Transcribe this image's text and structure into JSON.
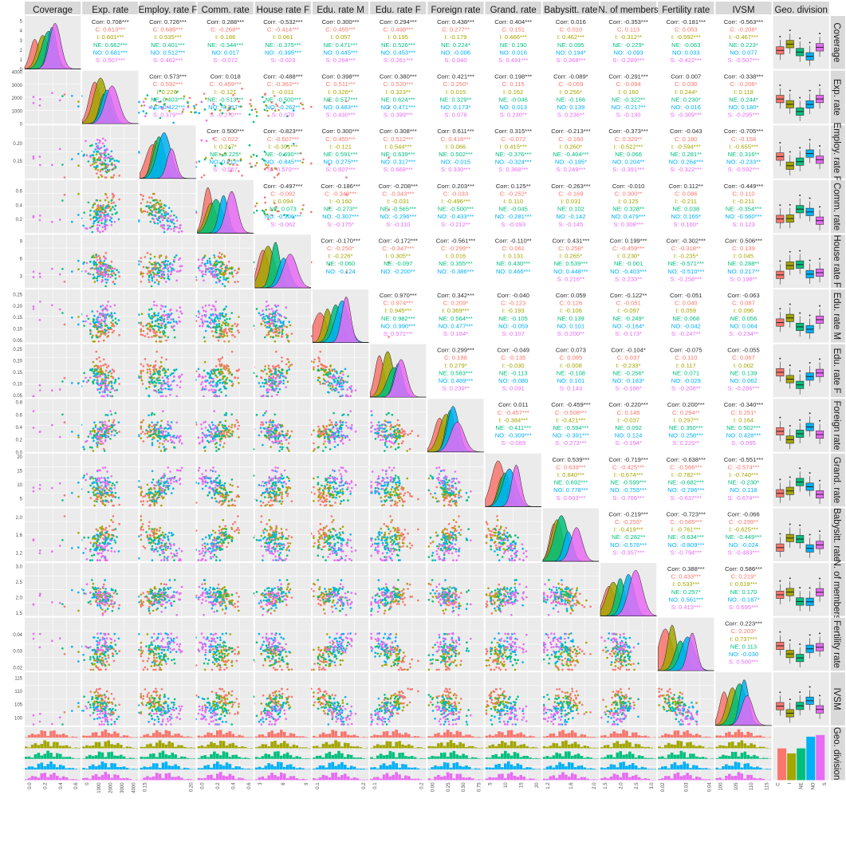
{
  "figure": {
    "vars": [
      {
        "key": "coverage",
        "label": "Coverage",
        "ticks": [
          0,
          1,
          2,
          3,
          4,
          5
        ],
        "ylim": [
          0,
          5.5
        ],
        "xticks": [
          "0.0",
          "0.2",
          "0.4",
          "0.6"
        ],
        "xlim": [
          0,
          0.7
        ]
      },
      {
        "key": "exp",
        "label": "Exp. rate",
        "ticks": [
          0,
          1000,
          2000,
          3000,
          4000
        ],
        "ylim": [
          0,
          4100
        ],
        "xticks": [
          "0",
          "1000",
          "2000",
          "3000",
          "4000"
        ],
        "xlim": [
          0,
          4100
        ]
      },
      {
        "key": "emp",
        "label": "Employ. rate F",
        "ticks": [
          "0.15",
          "0.20"
        ],
        "tickvals": [
          0.15,
          0.2
        ],
        "ylim": [
          0.1,
          0.25
        ],
        "xticks": [
          "0.15",
          "0.20"
        ],
        "xlim": [
          0.1,
          0.25
        ]
      },
      {
        "key": "comm",
        "label": "Comm. rate",
        "ticks": [
          "0.2",
          "0.4",
          "0.6"
        ],
        "tickvals": [
          0.2,
          0.4,
          0.6
        ],
        "ylim": [
          0,
          0.75
        ],
        "xticks": [
          "0.0",
          "0.2",
          "0.4",
          "0.6"
        ],
        "xlim": [
          0,
          0.75
        ]
      },
      {
        "key": "house",
        "label": "House rate F",
        "ticks": [
          3,
          6,
          9
        ],
        "ylim": [
          1,
          10
        ],
        "xticks": [
          "3",
          "6",
          "9"
        ],
        "xlim": [
          1,
          10
        ]
      },
      {
        "key": "edum",
        "label": "Edu. rate M",
        "ticks": [
          "0.05",
          "0.10",
          "0.15",
          "0.20",
          "0.25"
        ],
        "tickvals": [
          0.05,
          0.1,
          0.15,
          0.2,
          0.25
        ],
        "ylim": [
          0.04,
          0.27
        ],
        "xticks": [
          "0.1",
          "0.2"
        ],
        "xlim": [
          0.04,
          0.27
        ]
      },
      {
        "key": "eduf",
        "label": "Edu. rate F",
        "ticks": [
          "0.05",
          "0.10",
          "0.15",
          "0.20",
          "0.25"
        ],
        "tickvals": [
          0.05,
          0.1,
          0.15,
          0.2,
          0.25
        ],
        "ylim": [
          0.04,
          0.27
        ],
        "xticks": [
          "0.1",
          "0.2"
        ],
        "xlim": [
          0.04,
          0.27
        ]
      },
      {
        "key": "foreign",
        "label": "Foreign rate",
        "ticks": [
          "0.0",
          "0.2",
          "0.4",
          "0.6",
          "0.8"
        ],
        "tickvals": [
          0,
          0.2,
          0.4,
          0.6,
          0.8
        ],
        "ylim": [
          0,
          0.85
        ],
        "xticks": [
          "0.00",
          "0.25",
          "0.50",
          "0.75"
        ],
        "xlim": [
          0,
          0.85
        ]
      },
      {
        "key": "grand",
        "label": "Grand. rate",
        "ticks": [
          5,
          10,
          15,
          20
        ],
        "ylim": [
          2,
          21
        ],
        "xticks": [
          "5",
          "10",
          "15",
          "20"
        ],
        "xlim": [
          2,
          21
        ]
      },
      {
        "key": "baby",
        "label": "Babysitt. rate",
        "ticks": [
          "1.2",
          "1.6",
          "2.0"
        ],
        "tickvals": [
          1.2,
          1.6,
          2.0
        ],
        "ylim": [
          1.0,
          2.2
        ],
        "xticks": [
          "1.2",
          "1.6",
          "2.0"
        ],
        "xlim": [
          1.0,
          2.2
        ]
      },
      {
        "key": "nmem",
        "label": "N. of members",
        "ticks": [
          "1.5",
          "2.0",
          "2.5",
          "3.0"
        ],
        "tickvals": [
          1.5,
          2.0,
          2.5,
          3.0
        ],
        "ylim": [
          1.4,
          3.1
        ],
        "xticks": [
          "1.5",
          "2.0",
          "2.5",
          "3.0"
        ],
        "xlim": [
          1.4,
          3.1
        ]
      },
      {
        "key": "fert",
        "label": "Fertility rate",
        "ticks": [
          "0.02",
          "0.03",
          "0.04"
        ],
        "tickvals": [
          0.02,
          0.03,
          0.04
        ],
        "ylim": [
          0.018,
          0.05
        ],
        "xticks": [
          "0.02",
          "0.03",
          "0.04"
        ],
        "xlim": [
          0.018,
          0.05
        ]
      },
      {
        "key": "ivsm",
        "label": "IVSM",
        "ticks": [
          100,
          105,
          110,
          115
        ],
        "ylim": [
          97,
          117
        ],
        "xticks": [
          "100",
          "105",
          "110",
          "115"
        ],
        "xlim": [
          97,
          117
        ]
      },
      {
        "key": "geo",
        "label": "Geo. division",
        "xticks": [
          "C",
          "I",
          "NE",
          "NO",
          "S"
        ]
      }
    ],
    "groups": [
      "C",
      "I",
      "NE",
      "NO",
      "S"
    ],
    "colors": {
      "C": "#F8766D",
      "I": "#A3A500",
      "NE": "#00BF7D",
      "NO": "#00B0F6",
      "S": "#E76BF3"
    },
    "strip_bg": "#D9D9D9",
    "panel_bg": "#EBEBEB",
    "grid": "#FFFFFF",
    "corr_lines": [
      [
        "Corr: 0.708***",
        "Corr: 0.726***",
        "Corr: 0.288***",
        "Corr: -0.532***",
        "Corr: 0.300***",
        "Corr: 0.294***",
        "Corr: 0.438***",
        "Corr: 0.404***",
        "Corr: 0.016",
        "Corr: -0.353***",
        "Corr: -0.181***",
        "Corr: -0.563***"
      ],
      [
        "Corr: 0.573***",
        "Corr: 0.018",
        "Corr: -0.488***",
        "Corr: 0.398***",
        "Corr: 0.380***",
        "Corr: 0.421***",
        "Corr: 0.198***",
        "Corr: -0.089*",
        "Corr: -0.291***",
        "Corr: 0.007",
        "Corr: -0.338***"
      ],
      [
        "Corr: 0.500***",
        "Corr: -0.823***",
        "Corr: 0.300***",
        "Corr: 0.308***",
        "Corr: 0.611***",
        "Corr: 0.315***",
        "Corr: -0.213***",
        "Corr: -0.373***",
        "Corr: -0.043",
        "Corr: -0.705***"
      ],
      [
        "Corr: -0.497***",
        "Corr: -0.186***",
        "Corr: -0.208***",
        "Corr: 0.203***",
        "Corr: 0.125**",
        "Corr: -0.263***",
        "Corr: -0.010",
        "Corr: 0.112**",
        "Corr: -0.449***"
      ],
      [
        "Corr: -0.170***",
        "Corr: -0.172***",
        "Corr: -0.561***",
        "Corr: -0.110**",
        "Corr: 0.431***",
        "Corr: 0.199***",
        "Corr: -0.302***",
        "Corr: 0.506***"
      ],
      [
        "Corr: 0.970***",
        "Corr: 0.342***",
        "Corr: -0.040",
        "Corr: 0.059",
        "Corr: -0.122**",
        "Corr: -0.051",
        "Corr: -0.063"
      ],
      [
        "Corr: 0.299***",
        "Corr: -0.049",
        "Corr: 0.073",
        "Corr: -0.104*",
        "Corr: -0.075",
        "Corr: -0.055"
      ],
      [
        "Corr: 0.011",
        "Corr: -0.459***",
        "Corr: -0.220***",
        "Corr: 0.200***",
        "Corr: -0.340***"
      ],
      [
        "Corr: 0.539***",
        "Corr: -0.719***",
        "Corr: -0.638***",
        "Corr: -0.551***"
      ],
      [
        "Corr: -0.219***",
        "Corr: -0.723***",
        "Corr: -0.066"
      ],
      [
        "Corr: 0.388***",
        "Corr: 0.586***"
      ],
      [
        "Corr: 0.223***"
      ]
    ],
    "group_corr": {
      "0-1": [
        "C: 0.613***",
        "I: 0.601***",
        "NE: 0.662***",
        "NO: 0.681***",
        "S: 0.507***"
      ],
      "0-2": [
        "C: 0.689***",
        "I: 0.535***",
        "NE: 0.401***",
        "NO: 0.512***",
        "S: 0.462***"
      ],
      "0-3": [
        "C: -0.268**",
        "I: 0.186",
        "NE: -0.344***",
        "NO: 0.017",
        "S: -0.072"
      ],
      "0-4": [
        "C: -0.414***",
        "I: 0.061",
        "NE: -0.375***",
        "NO: -0.395***",
        "S: -0.023"
      ],
      "0-5": [
        "C: 0.455***",
        "I: 0.057",
        "NE: 0.471***",
        "NO: 0.445***",
        "S: 0.264***"
      ],
      "0-6": [
        "C: 0.498***",
        "I: 0.195",
        "NE: 0.526***",
        "NO: 0.453***",
        "S: 0.261***"
      ],
      "0-7": [
        "C: 0.277**",
        "I: -0.179",
        "NE: 0.224*",
        "NO: -0.006",
        "S: 0.040"
      ],
      "0-8": [
        "C: 0.151",
        "I: 0.466***",
        "NE: 0.190",
        "NO: 0.016",
        "S: 0.491***"
      ],
      "0-9": [
        "C: 0.010",
        "I: 0.462***",
        "NE: 0.095",
        "NO: 0.194*",
        "S: 0.368***"
      ],
      "0-10": [
        "C: 0.113",
        "I: -0.312**",
        "NE: -0.229*",
        "NO: -0.093",
        "S: -0.289***"
      ],
      "0-11": [
        "C: 0.053",
        "I: -0.592***",
        "NE: -0.063",
        "NO: 0.033",
        "S: -0.422***"
      ],
      "0-12": [
        "C: -0.208*",
        "I: -0.467***",
        "NE: 0.223*",
        "NO: 0.077",
        "S: -0.507***"
      ],
      "1-2": [
        "C: 0.592***",
        "I: 0.226*",
        "NE: 0.403***",
        "NO: 0.422***",
        "S: 0.379***"
      ],
      "1-3": [
        "C: -0.459***",
        "I: -0.121",
        "NE: -0.513***",
        "NO: -0.317**",
        "S: -0.270***"
      ],
      "1-4": [
        "C: -0.363***",
        "I: -0.011",
        "NE: -0.500***",
        "NO: -0.262**",
        "S: 0.078"
      ],
      "1-5": [
        "C: 0.511***",
        "I: 0.326**",
        "NE: 0.577***",
        "NO: 0.483***",
        "S: 0.430***"
      ],
      "1-6": [
        "C: 0.520***",
        "I: 0.323**",
        "NE: 0.624***",
        "NO: 0.471***",
        "S: 0.399***"
      ],
      "1-7": [
        "C: 0.250*",
        "I: 0.015",
        "NE: 0.329**",
        "NO: 0.173*",
        "S: 0.078"
      ],
      "1-8": [
        "C: 0.115",
        "I: 0.162",
        "NE: -0.046",
        "NO: 0.013",
        "S: 0.230**"
      ],
      "1-9": [
        "C: -0.059",
        "I: 0.256*",
        "NE: -0.166",
        "NO: 0.139",
        "S: 0.236**"
      ],
      "1-10": [
        "C: -0.094",
        "I: 0.160",
        "NE: -0.322**",
        "NO: -0.217**",
        "S: -0.130"
      ],
      "1-11": [
        "C: 0.030",
        "I: 0.244*",
        "NE: 0.230*",
        "NO: -0.016",
        "S: -0.309***"
      ],
      "1-12": [
        "C: -0.206*",
        "I: 0.118",
        "NE: 0.244*",
        "NO: 0.180*",
        "S: -0.295***"
      ],
      "2-3": [
        "C: -0.022",
        "I: 0.247*",
        "NE: -0.225*",
        "NO: 0.212**",
        "S: -0.067"
      ],
      "2-4": [
        "C: -0.607***",
        "I: -0.391***",
        "NE: -0.690***",
        "NO: -0.845***",
        "S: -0.570***"
      ],
      "2-5": [
        "C: 0.455***",
        "I: -0.121",
        "NE: 0.591***",
        "NO: 0.275***",
        "S: 0.607***"
      ],
      "2-6": [
        "C: 0.512***",
        "I: 0.544***",
        "NE: 0.639***",
        "NO: 0.317***",
        "S: 0.668***"
      ],
      "2-7": [
        "C: 0.416***",
        "I: 0.066",
        "NE: 0.502***",
        "NO: -0.015",
        "S: 0.330***"
      ],
      "2-8": [
        "C: -0.072",
        "I: 0.415***",
        "NE: -0.376***",
        "NO: -0.324***",
        "S: 0.368***"
      ],
      "2-9": [
        "C: -0.160",
        "I: 0.260*",
        "NE: -0.404***",
        "NO: -0.195*",
        "S: 0.249***"
      ],
      "2-10": [
        "C: 0.320**",
        "I: -0.522***",
        "NE: 0.066",
        "NO: 0.204**",
        "S: -0.391***"
      ],
      "2-11": [
        "C: 0.180",
        "I: -0.594***",
        "NE: 0.281**",
        "NO: 0.264***",
        "S: -0.322***"
      ],
      "2-12": [
        "C: -0.158",
        "I: -0.655***",
        "NE: 0.316**",
        "NO: -0.233**",
        "S: -0.592***"
      ],
      "3-4": [
        "C: -0.092",
        "I: 0.094",
        "NE: 0.073",
        "NO: -0.306***",
        "S: -0.062"
      ],
      "3-5": [
        "C: -0.349***",
        "I: -0.160",
        "NE: -0.273**",
        "NO: -0.307***",
        "S: -0.175*"
      ],
      "3-6": [
        "C: -0.343***",
        "I: -0.031",
        "NE: -0.565***",
        "NO: -0.296***",
        "S: -0.110"
      ],
      "3-7": [
        "C: -0.033",
        "I: -0.496***",
        "NE: -0.500***",
        "NO: -0.433***",
        "S: -0.212**"
      ],
      "3-8": [
        "C: -0.252*",
        "I: 0.110",
        "NE: -0.045",
        "NO: -0.281***",
        "S: -0.093"
      ],
      "3-9": [
        "C: -0.169",
        "I: 0.031",
        "NE: 0.102",
        "NO: -0.142",
        "S: -0.145"
      ],
      "3-10": [
        "C: 0.300**",
        "I: 0.125",
        "NE: 0.328**",
        "NO: 0.479***",
        "S: 0.308***"
      ],
      "3-11": [
        "C: 0.086",
        "I: -0.211",
        "NE: 0.038",
        "NO: 0.165*",
        "S: 0.160*"
      ],
      "3-12": [
        "C: 0.110",
        "I: -0.211",
        "NE: -0.354***",
        "NO: -0.560***",
        "S: 0.123"
      ],
      "4-5": [
        "C: -0.250*",
        "I: -0.226*",
        "NE: -0.060",
        "NO: -0.124",
        ""
      ],
      "4-6": [
        "C: -0.347***",
        "I: 0.305**",
        "NE: -0.097",
        "NO: -0.200**",
        ""
      ],
      "4-7": [
        "C: -0.299**",
        "I: 0.016",
        "NE: 0.355***",
        "NO: -0.386***",
        ""
      ],
      "4-8": [
        "C: 0.061",
        "I: 0.131",
        "NE: 0.430***",
        "NO: 0.466***",
        ""
      ],
      "4-9": [
        "C: 0.258*",
        "I: 0.265*",
        "NE: 0.539***",
        "NO: 0.448***",
        "S: 0.216**"
      ],
      "4-10": [
        "C: -0.459***",
        "I: 0.230*",
        "NE: -0.001",
        "NO: -0.403***",
        "S: 0.233**"
      ],
      "4-11": [
        "C: -0.318**",
        "I: -0.235*",
        "NE: -0.571***",
        "NO: -0.510***",
        "S: -0.258***"
      ],
      "4-12": [
        "C: 0.139",
        "I: 0.045",
        "NE: 0.288**",
        "NO: 0.217**",
        "S: 0.198**"
      ],
      "5-6": [
        "C: 0.974***",
        "I: 0.945***",
        "NE: 0.982***",
        "NO: 0.990***",
        "S: 0.971***"
      ],
      "5-7": [
        "C: 0.209*",
        "I: 0.369***",
        "NE: 0.564***",
        "NO: 0.477***",
        "S: 0.184*"
      ],
      "5-8": [
        "C: -0.123",
        "I: -0.193",
        "NE: -0.105",
        "NO: -0.059",
        "S: 0.107"
      ],
      "5-9": [
        "C: 0.126",
        "I: -0.106",
        "NE: 0.139",
        "NO: 0.101",
        "S: 0.200**"
      ],
      "5-10": [
        "C: -0.051",
        "I: -0.097",
        "NE: -0.249*",
        "NO: -0.164*",
        "S: -0.173*"
      ],
      "5-11": [
        "C: 0.040",
        "I: 0.059",
        "NE: 0.068",
        "NO: -0.042",
        "S: -0.247**"
      ],
      "5-12": [
        "C: 0.087",
        "I: 0.096",
        "NE: 0.056",
        "NO: 0.064",
        "S: -0.234**"
      ],
      "6-7": [
        "C: 0.198",
        "I: 0.279*",
        "NE: 0.583***",
        "NO: 0.489***",
        "S: 0.239**"
      ],
      "6-8": [
        "C: -0.135",
        "I: -0.030",
        "NE: -0.113",
        "NO: -0.080",
        "S: 0.091"
      ],
      "6-9": [
        "C: 0.095",
        "I: -0.008",
        "NE: -0.108",
        "NO: 0.101",
        "S: 0.143"
      ],
      "6-10": [
        "C: 0.037",
        "I: -0.233*",
        "NE: -0.256*",
        "NO: -0.183*",
        "S: -0.186*"
      ],
      "6-11": [
        "C: 0.110",
        "I: 0.117",
        "NE: 0.071",
        "NO: -0.029",
        "S: -0.208**"
      ],
      "6-12": [
        "C: 0.067",
        "I: 0.002",
        "NE: 0.139",
        "NO: 0.062",
        "S: -0.286***"
      ],
      "7-8": [
        "C: -0.457***",
        "I: -0.384***",
        "NE: -0.411***",
        "NO: -0.309***",
        "S: -0.089"
      ],
      "7-9": [
        "C: -0.508***",
        "I: -0.421***",
        "NE: -0.594***",
        "NO: -0.391***",
        "S: -0.273***"
      ],
      "7-10": [
        "C: 0.146",
        "I: -0.037",
        "NE: 0.092",
        "NO: 0.124",
        "S: -0.194*"
      ],
      "7-11": [
        "C: 0.294**",
        "I: 0.297**",
        "NE: 0.350***",
        "NO: 0.258***",
        "S: 0.220**"
      ],
      "7-12": [
        "C: 0.251*",
        "I: 0.164",
        "NE: 0.502***",
        "NO: 0.428***",
        "S: -0.095"
      ],
      "8-9": [
        "C: 0.639***",
        "I: 0.840***",
        "NE: 0.692***",
        "NO: 0.778***",
        "S: 0.603***"
      ],
      "8-10": [
        "C: -0.425***",
        "I: -0.674***",
        "NE: -0.599***",
        "NO: -0.755***",
        "S: -0.766***"
      ],
      "8-11": [
        "C: -0.566***",
        "I: -0.782***",
        "NE: -0.682***",
        "NO: -0.786***",
        "S: -0.637***"
      ],
      "8-12": [
        "C: -0.574***",
        "I: -0.740***",
        "NE: -0.230*",
        "NO: 0.118",
        "S: -0.674***"
      ],
      "9-10": [
        "C: -0.255*",
        "I: -0.419***",
        "NE: -0.282**",
        "NO: -0.576***",
        "S: -0.357***"
      ],
      "9-11": [
        "C: -0.585***",
        "I: -0.761***",
        "NE: -0.634***",
        "NO: -0.809***",
        "S: -0.794***"
      ],
      "9-12": [
        "C: -0.299**",
        "I: -0.625***",
        "NE: -0.449***",
        "NO: -0.024",
        "S: -0.483***"
      ],
      "10-11": [
        "C: 0.433***",
        "I: 0.533***",
        "NE: 0.257*",
        "NO: 0.561***",
        "S: 0.413***"
      ],
      "10-12": [
        "C: 0.219*",
        "I: 0.618***",
        "NE: 0.170",
        "NO: -0.187*",
        "S: 0.695***"
      ],
      "11-12": [
        "C: 0.203*",
        "I: 0.737***",
        "NE: 0.113",
        "NO: -0.030",
        "S: 0.500***"
      ]
    },
    "geo_counts": [
      19,
      16,
      19,
      26,
      27
    ]
  },
  "chart_data": {
    "type": "scatter",
    "title": "",
    "series": [
      {
        "name": "C"
      },
      {
        "name": "I"
      },
      {
        "name": "NE"
      },
      {
        "name": "NO"
      },
      {
        "name": "S"
      }
    ],
    "categories": [
      "Coverage",
      "Exp. rate",
      "Employ. rate F",
      "Comm. rate",
      "House rate F",
      "Edu. rate M",
      "Edu. rate F",
      "Foreign rate",
      "Grand. rate",
      "Babysitt. rate",
      "N. of members",
      "Fertility rate",
      "IVSM",
      "Geo. division"
    ]
  }
}
